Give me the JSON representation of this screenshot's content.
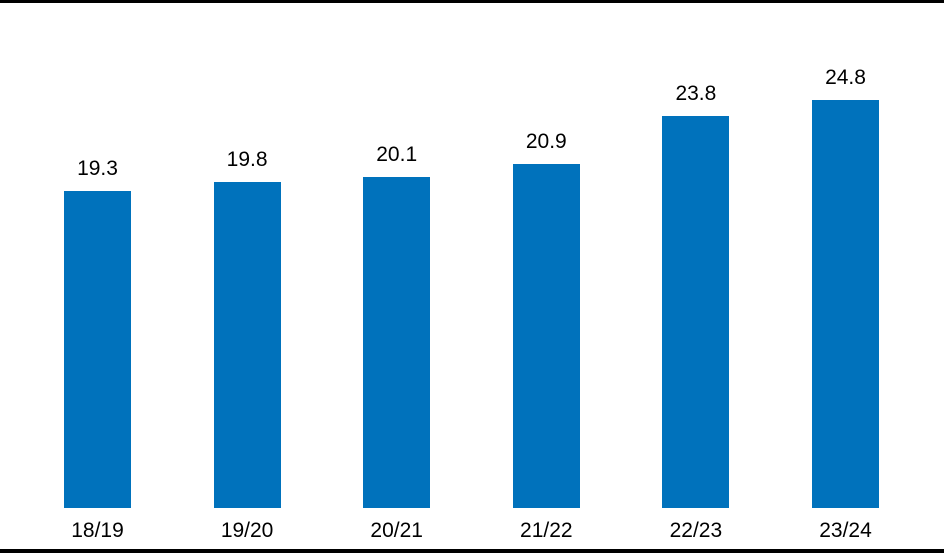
{
  "chart_data": {
    "type": "bar",
    "title": "",
    "xlabel": "",
    "ylabel": "",
    "categories": [
      "18/19",
      "19/20",
      "20/21",
      "21/22",
      "22/23",
      "23/24"
    ],
    "values": [
      19.3,
      19.8,
      20.1,
      20.9,
      23.8,
      24.8
    ],
    "value_labels": [
      "19.3",
      "19.8",
      "20.1",
      "20.9",
      "23.8",
      "24.8"
    ],
    "ylim": [
      0,
      26
    ],
    "gridlines": false,
    "legend": "none",
    "y_axis_visible": false,
    "bar_color": "#0072BC",
    "text_color": "#000000",
    "frame_line_color": "#000000"
  }
}
